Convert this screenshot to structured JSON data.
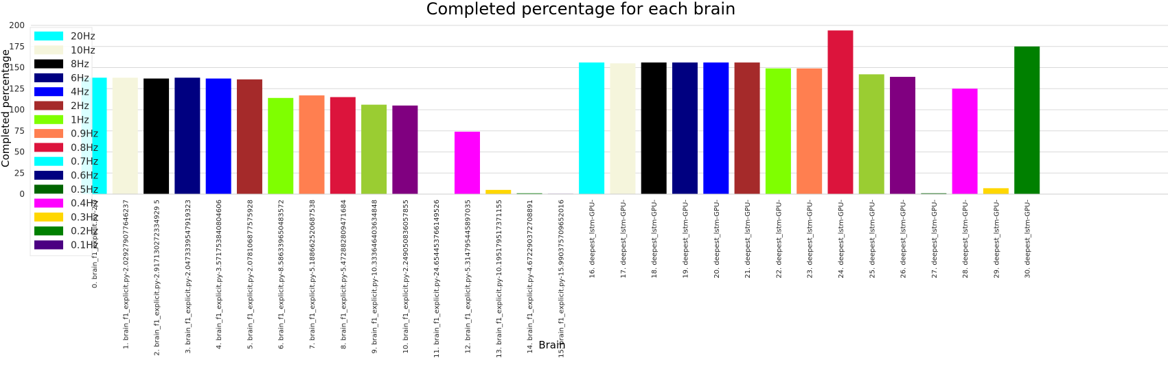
{
  "chart_data": {
    "type": "bar",
    "title": "Completed percentage for each brain",
    "xlabel": "Brain",
    "ylabel": "Completed percentage",
    "ylim": [
      0,
      200
    ],
    "yticks": [
      0,
      25,
      50,
      75,
      100,
      125,
      150,
      175,
      200
    ],
    "grid": "horizontal",
    "legend_position": "upper-left",
    "categories": [
      "0. brain_f1_explicit.py-2.0",
      "1. brain_f1_explicit.py-2.029279077646237",
      "2. brain_f1_explicit.py-2.917130272334929 5",
      "3. brain_f1_explicit.py-2.0473339547919323",
      "4. brain_f1_explicit.py-3.571753840804606",
      "5. brain_f1_explicit.py-2.078106877575928",
      "6. brain_f1_explicit.py-8.586339650483572",
      "7. brain_f1_explicit.py-5.188662520687538",
      "8. brain_f1_explicit.py-5.472882809471684",
      "9. brain_f1_explicit.py-10.333646403634848",
      "10. brain_f1_explicit.py-2.249050836057855",
      "11. brain_f1_explicit.py-24.654453766149526",
      "12. brain_f1_explicit.py-5.314795445897035",
      "13. brain_f1_explicit.py-10.195179517371155",
      "14. brain_f1_explicit.py-4.672290372708891",
      "15. brain_f1_explicit.py-15.990375709652016",
      "16. deepest_lstm-GPU-",
      "17. deepest_lstm-GPU-",
      "18. deepest_lstm-GPU-",
      "19. deepest_lstm-GPU-",
      "20. deepest_lstm-GPU-",
      "21. deepest_lstm-GPU-",
      "22. deepest_lstm-GPU-",
      "23. deepest_lstm-GPU-",
      "24. deepest_lstm-GPU-",
      "25. deepest_lstm-GPU-",
      "26. deepest_lstm-GPU-",
      "27. deepest_lstm-GPU-",
      "28. deepest_lstm-GPU-",
      "29. deepest_lstm-GPU-",
      "30. deepest_lstm-GPU-"
    ],
    "values": [
      138,
      138,
      137,
      138,
      137,
      136,
      114,
      117,
      115,
      106,
      105,
      0,
      74,
      5,
      1,
      0.5,
      156,
      155,
      156,
      156,
      156,
      156,
      149,
      149,
      194,
      142,
      139,
      1,
      125,
      7,
      175
    ],
    "colors": [
      "#00ffff",
      "#f5f5dc",
      "#000000",
      "#000080",
      "#0000ff",
      "#a52a2a",
      "#7fff00",
      "#ff7f50",
      "#dc143c",
      "#9acd32",
      "#800080",
      "#006400",
      "#ff00ff",
      "#ffd700",
      "#008000",
      "#4b0082",
      "#00ffff",
      "#f5f5dc",
      "#000000",
      "#000080",
      "#0000ff",
      "#a52a2a",
      "#7fff00",
      "#ff7f50",
      "#dc143c",
      "#9acd32",
      "#800080",
      "#006400",
      "#ff00ff",
      "#ffd700",
      "#008000"
    ],
    "legend": [
      {
        "label": "20Hz",
        "color": "#00ffff"
      },
      {
        "label": "10Hz",
        "color": "#f5f5dc"
      },
      {
        "label": "8Hz",
        "color": "#000000"
      },
      {
        "label": "6Hz",
        "color": "#000080"
      },
      {
        "label": "4Hz",
        "color": "#0000ff"
      },
      {
        "label": "2Hz",
        "color": "#a52a2a"
      },
      {
        "label": "1Hz",
        "color": "#7fff00"
      },
      {
        "label": "0.9Hz",
        "color": "#ff7f50"
      },
      {
        "label": "0.8Hz",
        "color": "#dc143c"
      },
      {
        "label": "0.7Hz",
        "color": "#00ffff"
      },
      {
        "label": "0.6Hz",
        "color": "#000080"
      },
      {
        "label": "0.5Hz",
        "color": "#006400"
      },
      {
        "label": "0.4Hz",
        "color": "#ff00ff"
      },
      {
        "label": "0.3Hz",
        "color": "#ffd700"
      },
      {
        "label": "0.2Hz",
        "color": "#008000"
      },
      {
        "label": "0.1Hz",
        "color": "#4b0082"
      }
    ]
  }
}
